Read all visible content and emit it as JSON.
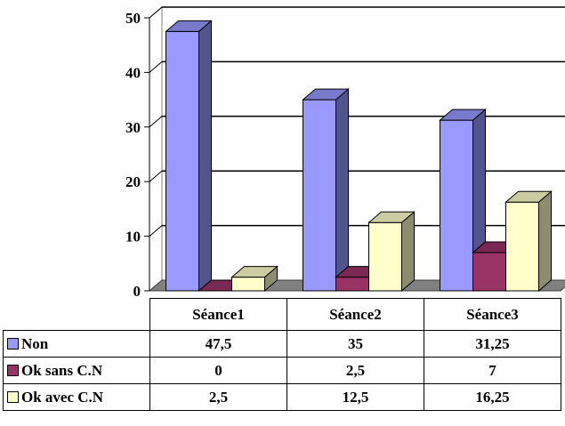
{
  "chart_data": {
    "type": "bar",
    "title": "",
    "xlabel": "",
    "ylabel": "",
    "ylim": [
      0,
      50
    ],
    "yticks": [
      "0",
      "10",
      "20",
      "30",
      "40",
      "50"
    ],
    "grid": true,
    "legend": "data-table",
    "categories": [
      "Séance1",
      "Séance2",
      "Séance3"
    ],
    "series": [
      {
        "name": "Non",
        "values": [
          47.5,
          35,
          31.25
        ],
        "labels": [
          "47,5",
          "35",
          "31,25"
        ],
        "color": "#9999ff"
      },
      {
        "name": "Ok sans C.N",
        "values": [
          0,
          2.5,
          7
        ],
        "labels": [
          "0",
          "2,5",
          "7"
        ],
        "color": "#993366"
      },
      {
        "name": "Ok avec C.N",
        "values": [
          2.5,
          12.5,
          16.25
        ],
        "labels": [
          "2,5",
          "12,5",
          "16,25"
        ],
        "color": "#ffffcc"
      }
    ]
  }
}
